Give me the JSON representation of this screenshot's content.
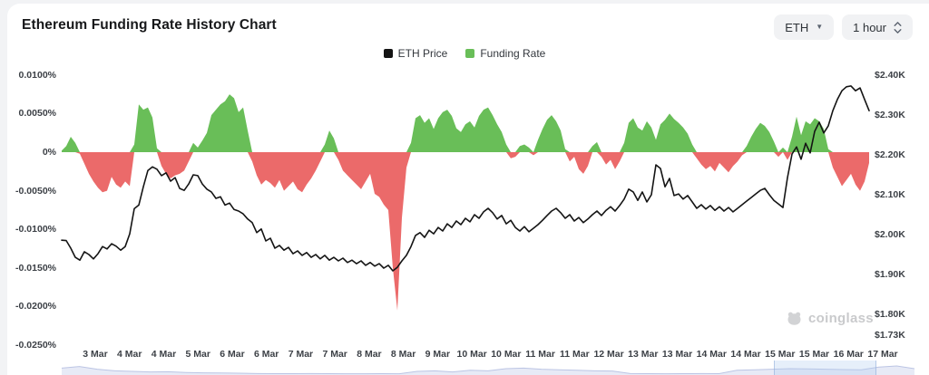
{
  "header": {
    "title": "Ethereum Funding Rate History Chart"
  },
  "controls": {
    "symbol_select": {
      "value": "ETH"
    },
    "interval_select": {
      "value": "1 hour"
    }
  },
  "legend": {
    "items": [
      {
        "label": "ETH Price",
        "color": "#141414"
      },
      {
        "label": "Funding Rate",
        "color": "#69be58"
      }
    ]
  },
  "watermark": {
    "text": "coinglass"
  },
  "chart_data": {
    "type": "mixed",
    "title": "Ethereum Funding Rate History Chart",
    "grid": false,
    "legend_position": "top-center",
    "x_tick_labels": [
      "3 Mar",
      "4 Mar",
      "4 Mar",
      "5 Mar",
      "6 Mar",
      "6 Mar",
      "7 Mar",
      "7 Mar",
      "8 Mar",
      "8 Mar",
      "9 Mar",
      "10 Mar",
      "10 Mar",
      "11 Mar",
      "11 Mar",
      "12 Mar",
      "13 Mar",
      "13 Mar",
      "14 Mar",
      "14 Mar",
      "15 Mar",
      "15 Mar",
      "16 Mar",
      "17 Mar"
    ],
    "left_axis": {
      "name": "Funding Rate",
      "unit": "%",
      "tick_labels": [
        "0.0100%",
        "0.0050%",
        "0%",
        "-0.0050%",
        "-0.0100%",
        "-0.0150%",
        "-0.0200%",
        "-0.0250%"
      ],
      "tick_values": [
        0.01,
        0.005,
        0,
        -0.005,
        -0.01,
        -0.015,
        -0.02,
        -0.025
      ],
      "range": [
        -0.025,
        0.01
      ]
    },
    "right_axis": {
      "name": "ETH Price",
      "unit": "$K",
      "tick_labels": [
        "$2.40K",
        "$2.30K",
        "$2.20K",
        "$2.10K",
        "$2.00K",
        "$1.90K",
        "$1.80K",
        "$1.73K"
      ],
      "tick_values": [
        2.4,
        2.3,
        2.2,
        2.1,
        2.0,
        1.9,
        1.8,
        1.73
      ],
      "range": [
        1.73,
        2.4
      ]
    },
    "series": [
      {
        "name": "Funding Rate",
        "type": "area",
        "y_axis": "left",
        "color_positive": "#69be58",
        "color_negative": "#eb6a6a",
        "values": [
          0.0002,
          0.0008,
          0.002,
          0.0012,
          -0.0002,
          -0.0015,
          -0.0028,
          -0.0038,
          -0.0046,
          -0.0052,
          -0.005,
          -0.0032,
          -0.0042,
          -0.0046,
          -0.0038,
          -0.0044,
          0.001,
          0.0062,
          0.0055,
          0.0058,
          0.0045,
          0.0005,
          -0.0018,
          -0.0028,
          -0.0034,
          -0.003,
          -0.0028,
          -0.0024,
          -0.0012,
          0.0012,
          0.0006,
          0.0015,
          0.0025,
          0.0048,
          0.0055,
          0.0062,
          0.0066,
          0.0075,
          0.007,
          0.0052,
          0.0058,
          0.0028,
          -0.0012,
          -0.003,
          -0.0042,
          -0.0036,
          -0.004,
          -0.0046,
          -0.0036,
          -0.005,
          -0.0044,
          -0.0038,
          -0.0048,
          -0.0052,
          -0.0042,
          -0.0034,
          -0.0024,
          -0.0012,
          0.001,
          0.0028,
          0.0018,
          -0.001,
          -0.0024,
          -0.003,
          -0.0036,
          -0.0042,
          -0.0048,
          -0.0038,
          -0.0028,
          -0.0054,
          -0.0058,
          -0.0068,
          -0.0075,
          -0.015,
          -0.0205,
          -0.0085,
          -0.002,
          0.0012,
          0.0044,
          0.0048,
          0.0038,
          0.0044,
          0.003,
          0.0044,
          0.0052,
          0.0055,
          0.0047,
          0.0031,
          0.0026,
          0.0036,
          0.004,
          0.0032,
          0.0047,
          0.0055,
          0.0058,
          0.0048,
          0.0036,
          0.0026,
          0.001,
          -0.0008,
          -0.0006,
          0.0008,
          0.001,
          0.0006,
          -0.0004,
          0.0016,
          0.003,
          0.0042,
          0.0048,
          0.004,
          0.0028,
          0.0004,
          -0.0012,
          -0.0006,
          -0.0022,
          -0.0028,
          -0.0018,
          0.0008,
          0.0013,
          -0.0006,
          -0.0016,
          -0.001,
          -0.0022,
          -0.0012,
          0.0012,
          0.0038,
          0.0044,
          0.0032,
          0.0028,
          0.004,
          0.0032,
          0.0016,
          0.0036,
          0.0042,
          0.005,
          0.0043,
          0.0038,
          0.0032,
          0.0024,
          0.001,
          -0.0008,
          -0.0016,
          -0.0022,
          -0.0018,
          -0.0025,
          -0.0014,
          -0.002,
          -0.0026,
          -0.0018,
          -0.0012,
          -0.0004,
          0.0008,
          0.002,
          0.003,
          0.0038,
          0.0034,
          0.0026,
          0.0014,
          -0.0006,
          0.0006,
          -0.001,
          0.002,
          0.0046,
          0.0022,
          0.004,
          0.0036,
          0.0044,
          0.004,
          0.003,
          0.0004,
          -0.002,
          -0.0032,
          -0.0044,
          -0.0036,
          -0.0028,
          -0.0042,
          -0.005,
          -0.0038,
          -0.0014
        ]
      },
      {
        "name": "ETH Price",
        "type": "line",
        "y_axis": "right",
        "color": "#141414",
        "values": [
          1.986,
          1.985,
          1.966,
          1.943,
          1.936,
          1.957,
          1.95,
          1.939,
          1.952,
          1.97,
          1.964,
          1.977,
          1.971,
          1.961,
          1.97,
          2.002,
          2.065,
          2.074,
          2.12,
          2.161,
          2.17,
          2.164,
          2.148,
          2.155,
          2.134,
          2.143,
          2.116,
          2.111,
          2.127,
          2.15,
          2.148,
          2.127,
          2.114,
          2.107,
          2.091,
          2.095,
          2.074,
          2.079,
          2.063,
          2.059,
          2.052,
          2.039,
          2.03,
          2.005,
          2.014,
          1.984,
          1.991,
          1.966,
          1.973,
          1.961,
          1.968,
          1.952,
          1.959,
          1.948,
          1.955,
          1.943,
          1.95,
          1.939,
          1.948,
          1.936,
          1.943,
          1.934,
          1.941,
          1.93,
          1.936,
          1.927,
          1.934,
          1.923,
          1.93,
          1.921,
          1.927,
          1.916,
          1.923,
          1.909,
          1.918,
          1.934,
          1.948,
          1.97,
          1.998,
          2.005,
          1.993,
          2.011,
          2.002,
          2.018,
          2.009,
          2.027,
          2.018,
          2.034,
          2.025,
          2.041,
          2.032,
          2.05,
          2.041,
          2.057,
          2.066,
          2.055,
          2.039,
          2.048,
          2.027,
          2.036,
          2.018,
          2.009,
          2.02,
          2.007,
          2.016,
          2.025,
          2.036,
          2.048,
          2.059,
          2.066,
          2.055,
          2.041,
          2.05,
          2.034,
          2.043,
          2.03,
          2.039,
          2.05,
          2.059,
          2.048,
          2.061,
          2.07,
          2.059,
          2.073,
          2.089,
          2.114,
          2.107,
          2.086,
          2.107,
          2.082,
          2.1,
          2.175,
          2.166,
          2.12,
          2.141,
          2.098,
          2.102,
          2.089,
          2.098,
          2.082,
          2.066,
          2.075,
          2.064,
          2.073,
          2.061,
          2.07,
          2.059,
          2.068,
          2.057,
          2.066,
          2.075,
          2.084,
          2.093,
          2.102,
          2.111,
          2.116,
          2.1,
          2.086,
          2.077,
          2.068,
          2.143,
          2.202,
          2.22,
          2.189,
          2.229,
          2.205,
          2.259,
          2.282,
          2.255,
          2.273,
          2.311,
          2.339,
          2.361,
          2.371,
          2.373,
          2.361,
          2.368,
          2.339,
          2.311
        ]
      }
    ]
  },
  "navigator": {
    "values": [
      0.55,
      0.7,
      0.45,
      0.3,
      0.25,
      0.2,
      0.22,
      0.15,
      0.12,
      0.1,
      0.08,
      0.05,
      0.04,
      0.04,
      0.05,
      0.04,
      0.03,
      0.03,
      0.04,
      0.03,
      0.25,
      0.3,
      0.2,
      0.35,
      0.3,
      0.5,
      0.55,
      0.45,
      0.4,
      0.35,
      0.3,
      0.28,
      0.05,
      0.04,
      0.03,
      0.04,
      0.05,
      0.04,
      0.35,
      0.4,
      0.45,
      0.5,
      0.48,
      0.45,
      0.42,
      0.4,
      0.65,
      0.75,
      0.5
    ],
    "selection": [
      0.835,
      0.955
    ]
  }
}
